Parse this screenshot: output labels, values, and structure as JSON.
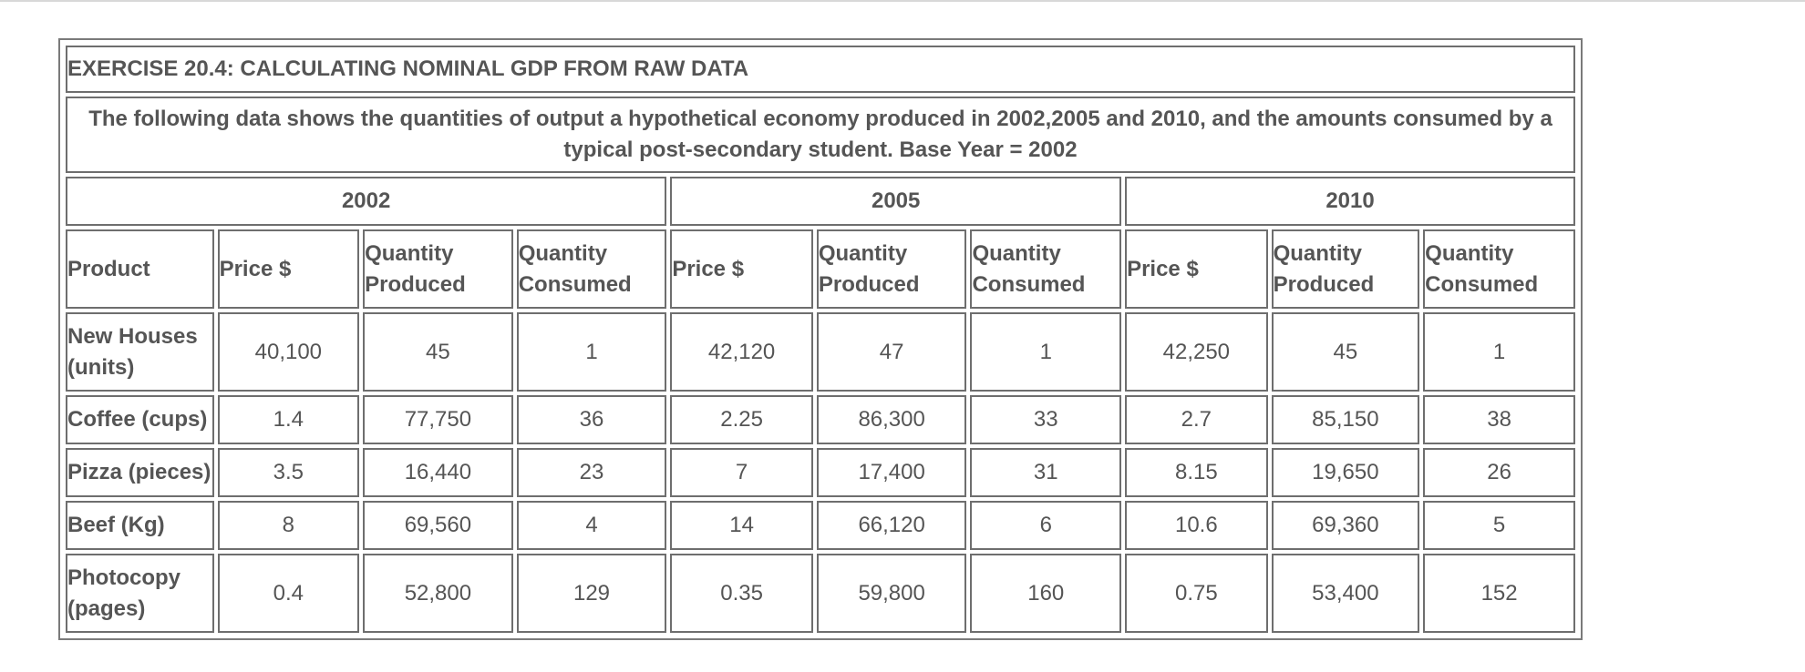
{
  "exercise_title": "EXERCISE 20.4: CALCULATING NOMINAL GDP FROM RAW DATA",
  "description": "The following data shows the quantities of output a hypothetical economy produced in 2002,2005 and 2010, and the amounts consumed by a typical post-secondary student.  Base Year = 2002",
  "years": [
    "2002",
    "2005",
    "2010"
  ],
  "headers": {
    "product": "Product",
    "price": "Price $",
    "qty_produced_l1": "Quantity",
    "qty_produced_l2": "Produced",
    "qty_consumed_l1": "Quantity",
    "qty_consumed_l2": "Consumed"
  },
  "rows": [
    {
      "product_l1": "New Houses",
      "product_l2": "(units)",
      "cells": [
        "40,100",
        "45",
        "1",
        "42,120",
        "47",
        "1",
        "42,250",
        "45",
        "1"
      ]
    },
    {
      "product_l1": "Coffee (cups)",
      "product_l2": "",
      "cells": [
        "1.4",
        "77,750",
        "36",
        "2.25",
        "86,300",
        "33",
        "2.7",
        "85,150",
        "38"
      ]
    },
    {
      "product_l1": "Pizza (pieces)",
      "product_l2": "",
      "cells": [
        "3.5",
        "16,440",
        "23",
        "7",
        "17,400",
        "31",
        "8.15",
        "19,650",
        "26"
      ]
    },
    {
      "product_l1": "Beef (Kg)",
      "product_l2": "",
      "cells": [
        "8",
        "69,560",
        "4",
        "14",
        "66,120",
        "6",
        "10.6",
        "69,360",
        "5"
      ]
    },
    {
      "product_l1": "Photocopy",
      "product_l2": "(pages)",
      "cells": [
        "0.4",
        "52,800",
        "129",
        "0.35",
        "59,800",
        "160",
        "0.75",
        "53,400",
        "152"
      ]
    }
  ]
}
